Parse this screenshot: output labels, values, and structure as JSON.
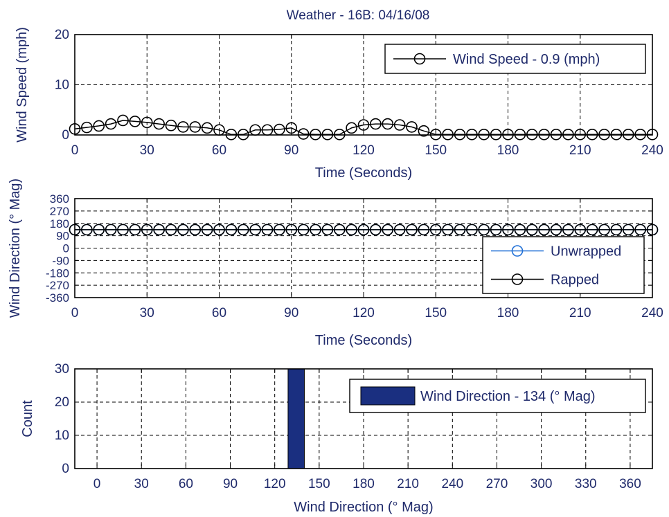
{
  "title": "Weather - 16B: 04/16/08",
  "chart_data": [
    {
      "type": "line",
      "xlabel": "Time (Seconds)",
      "ylabel": "Wind Speed (mph)",
      "xlim": [
        0,
        240
      ],
      "ylim": [
        0,
        20
      ],
      "xticks": [
        0,
        30,
        60,
        90,
        120,
        150,
        180,
        210,
        240
      ],
      "yticks": [
        0,
        10,
        20
      ],
      "grid": true,
      "legend_position": "top-right",
      "series": [
        {
          "name": "Wind Speed - 0.9 (mph)",
          "color": "#000000",
          "marker": "circle",
          "x": [
            0,
            5,
            10,
            15,
            20,
            25,
            30,
            35,
            40,
            45,
            50,
            55,
            60,
            65,
            70,
            75,
            80,
            85,
            90,
            95,
            100,
            105,
            110,
            115,
            120,
            125,
            130,
            135,
            140,
            145,
            150,
            155,
            160,
            165,
            170,
            175,
            180,
            185,
            190,
            195,
            200,
            205,
            210,
            215,
            220,
            225,
            230,
            235,
            240
          ],
          "y": [
            1.2,
            1.5,
            1.8,
            2.2,
            2.9,
            2.7,
            2.5,
            2.2,
            1.9,
            1.6,
            1.6,
            1.4,
            1.0,
            0.1,
            0.1,
            1.0,
            1.0,
            1.1,
            1.4,
            0.2,
            0.1,
            0.1,
            0.1,
            1.4,
            2.0,
            2.2,
            2.2,
            2.0,
            1.6,
            0.8,
            0.1,
            0.1,
            0.1,
            0.1,
            0.1,
            0.1,
            0.1,
            0.1,
            0.1,
            0.1,
            0.1,
            0.1,
            0.1,
            0.1,
            0.1,
            0.1,
            0.1,
            0.1,
            0.1
          ]
        }
      ]
    },
    {
      "type": "line",
      "xlabel": "Time (Seconds)",
      "ylabel": "Wind Direction (° Mag)",
      "xlim": [
        0,
        240
      ],
      "ylim": [
        -360,
        360
      ],
      "xticks": [
        0,
        30,
        60,
        90,
        120,
        150,
        180,
        210,
        240
      ],
      "yticks": [
        360,
        270,
        180,
        90,
        0,
        -90,
        -180,
        -270,
        -360
      ],
      "grid": true,
      "legend_position": "bottom-right",
      "series": [
        {
          "name": "Unwrapped",
          "color": "#1f6fd6",
          "marker": "circle",
          "x": [
            0,
            5,
            10,
            15,
            20,
            25,
            30,
            35,
            40,
            45,
            50,
            55,
            60,
            65,
            70,
            75,
            80,
            85,
            90,
            95,
            100,
            105,
            110,
            115,
            120,
            125,
            130,
            135,
            140,
            145,
            150,
            155,
            160,
            165,
            170,
            175,
            180,
            185,
            190,
            195,
            200,
            205,
            210,
            215,
            220,
            225,
            230,
            235,
            240
          ],
          "y": [
            134,
            134,
            134,
            134,
            134,
            134,
            134,
            134,
            134,
            134,
            134,
            134,
            134,
            134,
            134,
            134,
            134,
            134,
            134,
            134,
            134,
            134,
            134,
            134,
            134,
            134,
            134,
            134,
            134,
            134,
            134,
            134,
            134,
            134,
            134,
            134,
            134,
            134,
            134,
            134,
            134,
            134,
            134,
            134,
            134,
            134,
            134,
            134,
            134
          ]
        },
        {
          "name": "Rapped",
          "color": "#000000",
          "marker": "circle",
          "x": [
            0,
            5,
            10,
            15,
            20,
            25,
            30,
            35,
            40,
            45,
            50,
            55,
            60,
            65,
            70,
            75,
            80,
            85,
            90,
            95,
            100,
            105,
            110,
            115,
            120,
            125,
            130,
            135,
            140,
            145,
            150,
            155,
            160,
            165,
            170,
            175,
            180,
            185,
            190,
            195,
            200,
            205,
            210,
            215,
            220,
            225,
            230,
            235,
            240
          ],
          "y": [
            134,
            134,
            134,
            134,
            134,
            134,
            134,
            134,
            134,
            134,
            134,
            134,
            134,
            134,
            134,
            134,
            134,
            134,
            134,
            134,
            134,
            134,
            134,
            134,
            134,
            134,
            134,
            134,
            134,
            134,
            134,
            134,
            134,
            134,
            134,
            134,
            134,
            134,
            134,
            134,
            134,
            134,
            134,
            134,
            134,
            134,
            134,
            134,
            134
          ]
        }
      ]
    },
    {
      "type": "bar",
      "xlabel": "Wind Direction (° Mag)",
      "ylabel": "Count",
      "xlim": [
        -15,
        375
      ],
      "ylim": [
        0,
        30
      ],
      "xticks": [
        0,
        30,
        60,
        90,
        120,
        150,
        180,
        210,
        240,
        270,
        300,
        330,
        360
      ],
      "yticks": [
        0,
        10,
        20,
        30
      ],
      "grid": true,
      "legend_position": "top-right",
      "series": [
        {
          "name": "Wind Direction - 134 (° Mag)",
          "color": "#1a2f80",
          "bars": [
            {
              "x0": 129,
              "x1": 140,
              "value": 30
            }
          ]
        }
      ]
    }
  ]
}
